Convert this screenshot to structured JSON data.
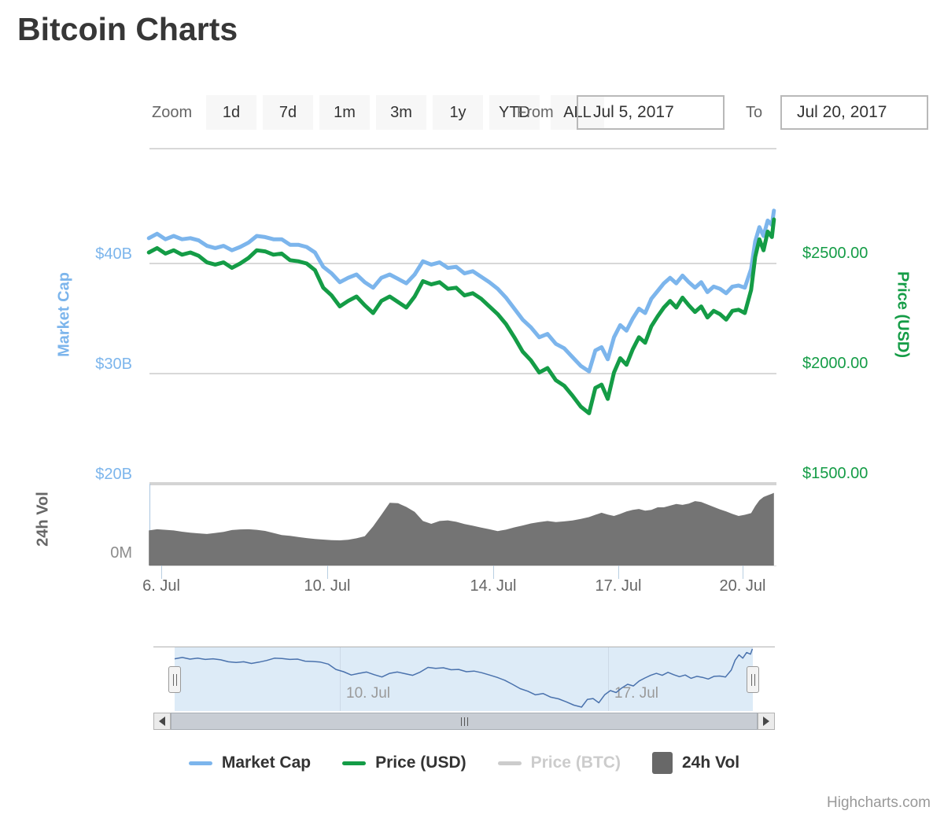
{
  "title": "Bitcoin Charts",
  "range_selector": {
    "zoom_label": "Zoom",
    "buttons": [
      "1d",
      "7d",
      "1m",
      "3m",
      "1y",
      "YTD",
      "ALL"
    ],
    "from_label": "From",
    "from_value": "Jul 5, 2017",
    "to_label": "To",
    "to_value": "Jul 20, 2017"
  },
  "axes": {
    "market_cap": {
      "title": "Market Cap",
      "color": "#7CB5EC",
      "labels": [
        "$40B",
        "$30B",
        "$20B"
      ]
    },
    "price_usd": {
      "title": "Price (USD)",
      "color": "#149C46",
      "labels": [
        "$2500.00",
        "$2000.00",
        "$1500.00"
      ]
    },
    "volume": {
      "title": "24h Vol",
      "color": "#666666",
      "label_color": "#8C8C8C",
      "labels": [
        "0M"
      ]
    },
    "x": {
      "labels": [
        "6. Jul",
        "10. Jul",
        "14. Jul",
        "17. Jul",
        "20. Jul"
      ]
    }
  },
  "navigator": {
    "labels": [
      "10. Jul",
      "17. Jul"
    ]
  },
  "scrollbar": {
    "left_arrow": "left",
    "right_arrow": "right"
  },
  "legend": [
    {
      "label": "Market Cap",
      "color": "#7CB5EC",
      "marker": "line",
      "enabled": true
    },
    {
      "label": "Price (USD)",
      "color": "#149C46",
      "marker": "line",
      "enabled": true
    },
    {
      "label": "Price (BTC)",
      "color": "#CCCCCC",
      "marker": "line",
      "enabled": false
    },
    {
      "label": "24h Vol",
      "color": "#686868",
      "marker": "square",
      "enabled": true
    }
  ],
  "credits": "Highcharts.com",
  "chart_data": {
    "type": "line",
    "title": "Bitcoin Charts",
    "x_unit": "day of July 2017",
    "x_tick_labels": [
      "6. Jul",
      "10. Jul",
      "14. Jul",
      "17. Jul",
      "20. Jul"
    ],
    "left_axis": {
      "title": "Market Cap",
      "ticks": [
        "$40B",
        "$30B",
        "$20B"
      ],
      "range_billions": [
        20,
        50
      ]
    },
    "right_axis": {
      "title": "Price (USD)",
      "ticks": [
        "$2500.00",
        "$2000.00",
        "$1500.00"
      ],
      "range_usd": [
        1500,
        3000
      ]
    },
    "volume_axis": {
      "title": "24h Vol",
      "ticks": [
        "0M"
      ],
      "range_millions": [
        0,
        2000
      ]
    },
    "grid": true,
    "legend_position": "bottom",
    "x_days_july_2017": [
      5.7,
      5.9,
      6.1,
      6.3,
      6.5,
      6.7,
      6.9,
      7.1,
      7.3,
      7.5,
      7.7,
      7.9,
      8.1,
      8.3,
      8.5,
      8.7,
      8.9,
      9.1,
      9.3,
      9.5,
      9.7,
      9.9,
      10.1,
      10.3,
      10.5,
      10.7,
      10.9,
      11.1,
      11.3,
      11.5,
      11.7,
      11.9,
      12.1,
      12.3,
      12.5,
      12.7,
      12.9,
      13.1,
      13.3,
      13.5,
      13.7,
      13.9,
      14.1,
      14.3,
      14.5,
      14.7,
      14.9,
      15.1,
      15.3,
      15.5,
      15.7,
      15.9,
      16.1,
      16.3,
      16.45,
      16.6,
      16.75,
      16.9,
      17.05,
      17.2,
      17.35,
      17.5,
      17.65,
      17.8,
      17.95,
      18.1,
      18.25,
      18.4,
      18.55,
      18.7,
      18.85,
      19.0,
      19.15,
      19.3,
      19.45,
      19.6,
      19.75,
      19.9,
      20.05,
      20.2,
      20.3,
      20.4,
      20.5,
      20.6,
      20.7,
      20.75
    ],
    "series": [
      {
        "name": "Market Cap",
        "type": "line",
        "axis": "left",
        "unit": "USD billions",
        "color": "#7CB5EC",
        "values": [
          42.3,
          42.7,
          42.2,
          42.5,
          42.2,
          42.3,
          42.1,
          41.6,
          41.4,
          41.6,
          41.2,
          41.5,
          41.9,
          42.5,
          42.4,
          42.2,
          42.2,
          41.7,
          41.7,
          41.5,
          41.0,
          39.7,
          39.1,
          38.3,
          38.7,
          39.0,
          38.3,
          37.8,
          38.7,
          39.0,
          38.6,
          38.2,
          39.0,
          40.2,
          39.9,
          40.1,
          39.6,
          39.7,
          39.1,
          39.3,
          38.8,
          38.3,
          37.7,
          36.9,
          35.9,
          34.9,
          34.2,
          33.3,
          33.6,
          32.7,
          32.3,
          31.5,
          30.7,
          30.2,
          32.1,
          32.4,
          31.3,
          33.3,
          34.4,
          33.9,
          35.0,
          35.9,
          35.5,
          36.8,
          37.5,
          38.2,
          38.7,
          38.2,
          38.9,
          38.3,
          37.8,
          38.3,
          37.4,
          37.9,
          37.7,
          37.3,
          37.9,
          38.0,
          37.8,
          39.5,
          42.0,
          43.3,
          42.5,
          43.9,
          43.5,
          44.8
        ]
      },
      {
        "name": "Price (USD)",
        "type": "line",
        "axis": "right",
        "unit": "USD",
        "color": "#149C46",
        "values": [
          2550,
          2570,
          2545,
          2560,
          2540,
          2550,
          2535,
          2505,
          2495,
          2505,
          2480,
          2500,
          2525,
          2560,
          2555,
          2540,
          2545,
          2515,
          2510,
          2500,
          2470,
          2390,
          2355,
          2305,
          2330,
          2350,
          2310,
          2275,
          2330,
          2350,
          2325,
          2300,
          2350,
          2420,
          2405,
          2415,
          2385,
          2390,
          2355,
          2365,
          2340,
          2305,
          2270,
          2225,
          2165,
          2100,
          2060,
          2005,
          2025,
          1970,
          1945,
          1900,
          1850,
          1820,
          1935,
          1950,
          1885,
          2005,
          2070,
          2040,
          2110,
          2165,
          2140,
          2215,
          2260,
          2300,
          2330,
          2300,
          2345,
          2310,
          2280,
          2305,
          2255,
          2285,
          2270,
          2245,
          2285,
          2290,
          2275,
          2380,
          2530,
          2610,
          2560,
          2645,
          2620,
          2700
        ]
      },
      {
        "name": "Price (BTC)",
        "type": "line",
        "hidden": true,
        "color": "#CCCCCC",
        "values": []
      },
      {
        "name": "24h Vol",
        "type": "area",
        "axis": "volume",
        "unit": "USD millions",
        "color": "#747474",
        "values": [
          830,
          860,
          845,
          830,
          800,
          775,
          760,
          745,
          770,
          795,
          840,
          855,
          860,
          845,
          820,
          770,
          720,
          700,
          670,
          645,
          625,
          610,
          595,
          590,
          605,
          640,
          690,
          930,
          1210,
          1500,
          1490,
          1400,
          1280,
          1060,
          990,
          1060,
          1075,
          1040,
          985,
          945,
          900,
          860,
          815,
          850,
          905,
          950,
          1000,
          1035,
          1060,
          1035,
          1050,
          1070,
          1110,
          1155,
          1210,
          1260,
          1215,
          1180,
          1230,
          1290,
          1330,
          1350,
          1310,
          1330,
          1390,
          1390,
          1430,
          1470,
          1450,
          1480,
          1540,
          1520,
          1460,
          1400,
          1340,
          1290,
          1230,
          1180,
          1210,
          1250,
          1420,
          1560,
          1640,
          1680,
          1720,
          1740
        ]
      }
    ],
    "navigator_series": {
      "name": "navigator",
      "mirrors": "Price (USD)"
    }
  }
}
